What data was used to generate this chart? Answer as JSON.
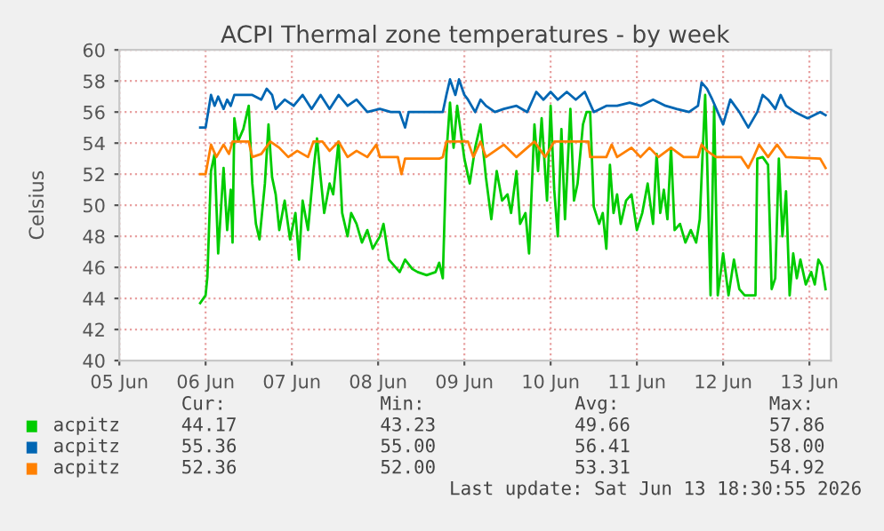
{
  "chart_data": {
    "type": "line",
    "title": "ACPI Thermal zone temperatures - by week",
    "ylabel": "Celsius",
    "xlim": [
      "2026-06-05T00:00",
      "2026-06-13T06:00"
    ],
    "xticks": [
      {
        "value": "2026-06-05",
        "label": "05 Jun"
      },
      {
        "value": "2026-06-06",
        "label": "06 Jun"
      },
      {
        "value": "2026-06-07",
        "label": "07 Jun"
      },
      {
        "value": "2026-06-08",
        "label": "08 Jun"
      },
      {
        "value": "2026-06-09",
        "label": "09 Jun"
      },
      {
        "value": "2026-06-10",
        "label": "10 Jun"
      },
      {
        "value": "2026-06-11",
        "label": "11 Jun"
      },
      {
        "value": "2026-06-12",
        "label": "12 Jun"
      },
      {
        "value": "2026-06-13",
        "label": "13 Jun"
      }
    ],
    "ylim": [
      40,
      60
    ],
    "yticks": [
      40,
      42,
      44,
      46,
      48,
      50,
      52,
      54,
      56,
      58,
      60
    ],
    "grid": true,
    "legend": "bottom",
    "marker": "none",
    "line_style": "solid",
    "series": [
      {
        "name": "acpitz",
        "color": "#00cc00",
        "x": [
          "2026-06-05T22:30",
          "2026-06-06T00:00",
          "2026-06-06T00:30",
          "2026-06-06T01:30",
          "2026-06-06T02:30",
          "2026-06-06T03:30",
          "2026-06-06T05:00",
          "2026-06-06T06:00",
          "2026-06-06T07:00",
          "2026-06-06T07:30",
          "2026-06-06T08:00",
          "2026-06-06T09:00",
          "2026-06-06T10:30",
          "2026-06-06T12:00",
          "2026-06-06T13:00",
          "2026-06-06T14:00",
          "2026-06-06T15:00",
          "2026-06-06T16:30",
          "2026-06-06T17:30",
          "2026-06-06T18:30",
          "2026-06-06T19:30",
          "2026-06-06T20:30",
          "2026-06-06T22:00",
          "2026-06-06T23:30",
          "2026-06-07T01:00",
          "2026-06-07T02:00",
          "2026-06-07T03:00",
          "2026-06-07T04:30",
          "2026-06-07T06:00",
          "2026-06-07T07:00",
          "2026-06-07T08:00",
          "2026-06-07T09:00",
          "2026-06-07T10:30",
          "2026-06-07T11:30",
          "2026-06-07T13:00",
          "2026-06-07T14:00",
          "2026-06-07T15:30",
          "2026-06-07T16:30",
          "2026-06-07T18:00",
          "2026-06-07T19:30",
          "2026-06-07T21:00",
          "2026-06-07T22:30",
          "2026-06-08T00:30",
          "2026-06-08T01:30",
          "2026-06-08T03:00",
          "2026-06-08T04:30",
          "2026-06-08T06:00",
          "2026-06-08T07:30",
          "2026-06-08T09:30",
          "2026-06-08T11:00",
          "2026-06-08T13:30",
          "2026-06-08T16:00",
          "2026-06-08T17:00",
          "2026-06-08T18:00",
          "2026-06-08T19:00",
          "2026-06-08T20:00",
          "2026-06-08T21:00",
          "2026-06-08T22:00",
          "2026-06-09T00:00",
          "2026-06-09T01:30",
          "2026-06-09T03:00",
          "2026-06-09T04:30",
          "2026-06-09T06:00",
          "2026-06-09T07:30",
          "2026-06-09T09:00",
          "2026-06-09T10:30",
          "2026-06-09T12:00",
          "2026-06-09T13:00",
          "2026-06-09T14:30",
          "2026-06-09T15:30",
          "2026-06-09T17:00",
          "2026-06-09T18:00",
          "2026-06-09T19:30",
          "2026-06-09T20:30",
          "2026-06-09T21:30",
          "2026-06-09T23:00",
          "2026-06-10T00:00",
          "2026-06-10T01:00",
          "2026-06-10T02:00",
          "2026-06-10T03:00",
          "2026-06-10T04:00",
          "2026-06-10T05:30",
          "2026-06-10T06:30",
          "2026-06-10T07:30",
          "2026-06-10T09:00",
          "2026-06-10T10:00",
          "2026-06-10T11:00",
          "2026-06-10T12:00",
          "2026-06-10T13:30",
          "2026-06-10T14:30",
          "2026-06-10T15:30",
          "2026-06-10T16:30",
          "2026-06-10T17:30",
          "2026-06-10T18:30",
          "2026-06-10T19:30",
          "2026-06-10T21:00",
          "2026-06-10T22:30",
          "2026-06-11T00:00",
          "2026-06-11T01:30",
          "2026-06-11T03:00",
          "2026-06-11T04:30",
          "2026-06-11T05:30",
          "2026-06-11T06:30",
          "2026-06-11T07:30",
          "2026-06-11T08:30",
          "2026-06-11T09:30",
          "2026-06-11T10:30",
          "2026-06-11T12:00",
          "2026-06-11T13:30",
          "2026-06-11T15:00",
          "2026-06-11T16:30",
          "2026-06-11T17:30",
          "2026-06-11T19:00",
          "2026-06-11T19:30",
          "2026-06-11T20:30",
          "2026-06-11T21:30",
          "2026-06-11T22:30",
          "2026-06-12T00:00",
          "2026-06-12T01:30",
          "2026-06-12T03:00",
          "2026-06-12T04:30",
          "2026-06-12T06:00",
          "2026-06-12T09:00",
          "2026-06-12T09:30",
          "2026-06-12T11:00",
          "2026-06-12T12:30",
          "2026-06-12T13:30",
          "2026-06-12T14:30",
          "2026-06-12T15:30",
          "2026-06-12T16:30",
          "2026-06-12T17:30",
          "2026-06-12T18:30",
          "2026-06-12T19:30",
          "2026-06-12T20:30",
          "2026-06-12T21:30",
          "2026-06-12T23:00",
          "2026-06-13T00:30",
          "2026-06-13T01:30",
          "2026-06-13T02:30",
          "2026-06-13T03:30",
          "2026-06-13T04:30"
        ],
        "values": [
          43.7,
          44.2,
          45.4,
          52.2,
          53.3,
          46.9,
          52.4,
          48.4,
          51.0,
          47.6,
          55.6,
          54.1,
          54.9,
          56.4,
          51.4,
          48.8,
          47.8,
          51.4,
          55.2,
          51.8,
          50.7,
          48.4,
          50.3,
          47.8,
          49.5,
          46.5,
          50.3,
          48.4,
          52.2,
          54.3,
          51.8,
          49.5,
          51.4,
          50.7,
          54.1,
          49.5,
          48.0,
          49.5,
          48.8,
          47.6,
          48.4,
          47.2,
          48.0,
          48.8,
          46.5,
          46.1,
          45.7,
          46.5,
          45.9,
          45.7,
          45.5,
          45.7,
          46.3,
          45.3,
          53.3,
          56.6,
          53.7,
          56.4,
          53.0,
          51.4,
          53.7,
          55.2,
          51.8,
          49.1,
          52.2,
          50.3,
          50.7,
          49.5,
          52.2,
          48.8,
          49.5,
          46.9,
          55.2,
          52.2,
          55.6,
          50.3,
          56.4,
          51.0,
          48.0,
          54.9,
          49.1,
          56.2,
          50.3,
          51.4,
          55.2,
          56.0,
          56.0,
          49.9,
          48.8,
          49.5,
          47.2,
          52.6,
          49.5,
          50.7,
          48.8,
          50.3,
          50.7,
          48.4,
          49.5,
          51.4,
          48.8,
          53.3,
          49.5,
          51.0,
          49.1,
          53.7,
          48.4,
          48.8,
          47.6,
          48.4,
          47.6,
          49.1,
          57.1,
          53.3,
          44.2,
          56.4,
          44.2,
          46.9,
          44.2,
          46.5,
          44.6,
          44.2,
          44.2,
          53.0,
          53.1,
          52.6,
          44.6,
          45.3,
          53.0,
          48.0,
          50.9,
          44.2,
          46.9,
          45.3,
          46.5,
          44.9,
          45.7,
          44.9,
          46.5,
          46.1,
          44.6
        ]
      },
      {
        "name": "acpitz",
        "color": "#0066b3",
        "x": [
          "2026-06-05T22:30",
          "2026-06-06T00:00",
          "2026-06-06T01:30",
          "2026-06-06T02:30",
          "2026-06-06T03:30",
          "2026-06-06T05:00",
          "2026-06-06T06:00",
          "2026-06-06T07:00",
          "2026-06-06T08:00",
          "2026-06-06T10:30",
          "2026-06-06T13:00",
          "2026-06-06T15:30",
          "2026-06-06T17:00",
          "2026-06-06T18:30",
          "2026-06-06T19:30",
          "2026-06-06T22:00",
          "2026-06-07T00:30",
          "2026-06-07T03:00",
          "2026-06-07T05:30",
          "2026-06-07T08:00",
          "2026-06-07T10:30",
          "2026-06-07T13:00",
          "2026-06-07T15:30",
          "2026-06-07T18:00",
          "2026-06-07T21:00",
          "2026-06-08T00:30",
          "2026-06-08T03:30",
          "2026-06-08T06:00",
          "2026-06-08T07:30",
          "2026-06-08T08:30",
          "2026-06-08T17:00",
          "2026-06-08T18:00",
          "2026-06-08T19:00",
          "2026-06-08T20:00",
          "2026-06-08T21:30",
          "2026-06-08T22:30",
          "2026-06-09T00:00",
          "2026-06-09T01:00",
          "2026-06-09T03:00",
          "2026-06-09T04:30",
          "2026-06-09T06:00",
          "2026-06-09T08:30",
          "2026-06-09T11:00",
          "2026-06-09T14:30",
          "2026-06-09T17:30",
          "2026-06-09T20:00",
          "2026-06-09T22:00",
          "2026-06-10T00:00",
          "2026-06-10T02:00",
          "2026-06-10T04:30",
          "2026-06-10T07:00",
          "2026-06-10T09:30",
          "2026-06-10T12:00",
          "2026-06-10T15:30",
          "2026-06-10T18:30",
          "2026-06-10T22:00",
          "2026-06-11T01:00",
          "2026-06-11T04:30",
          "2026-06-11T08:00",
          "2026-06-11T11:00",
          "2026-06-11T14:30",
          "2026-06-11T17:00",
          "2026-06-11T18:00",
          "2026-06-11T19:30",
          "2026-06-11T21:00",
          "2026-06-12T00:00",
          "2026-06-12T02:00",
          "2026-06-12T04:30",
          "2026-06-12T07:00",
          "2026-06-12T09:30",
          "2026-06-12T11:00",
          "2026-06-12T12:30",
          "2026-06-12T14:30",
          "2026-06-12T16:00",
          "2026-06-12T17:30",
          "2026-06-12T20:00",
          "2026-06-12T23:30",
          "2026-06-13T03:00",
          "2026-06-13T04:30"
        ],
        "values": [
          55.0,
          55.0,
          57.1,
          56.4,
          57.0,
          56.2,
          56.8,
          56.4,
          57.1,
          57.1,
          57.1,
          56.8,
          57.5,
          57.1,
          56.2,
          56.8,
          56.4,
          57.1,
          56.2,
          57.1,
          56.2,
          57.1,
          56.4,
          56.8,
          56.0,
          56.2,
          56.0,
          56.0,
          55.0,
          56.0,
          56.0,
          56.0,
          57.1,
          58.1,
          57.1,
          58.1,
          57.1,
          56.8,
          56.0,
          56.8,
          56.4,
          56.0,
          56.2,
          56.4,
          56.0,
          57.3,
          56.8,
          57.3,
          56.8,
          57.3,
          56.8,
          57.3,
          56.0,
          56.4,
          56.4,
          56.6,
          56.4,
          56.8,
          56.4,
          56.2,
          56.0,
          56.4,
          57.9,
          57.5,
          56.8,
          55.2,
          56.8,
          56.0,
          55.0,
          56.0,
          57.1,
          56.8,
          56.2,
          57.1,
          56.4,
          56.0,
          55.6,
          56.0,
          55.8
        ]
      },
      {
        "name": "acpitz",
        "color": "#ff8000",
        "x": [
          "2026-06-05T22:30",
          "2026-06-06T00:00",
          "2026-06-06T01:30",
          "2026-06-06T03:00",
          "2026-06-06T05:00",
          "2026-06-06T06:30",
          "2026-06-06T07:30",
          "2026-06-06T12:00",
          "2026-06-06T13:00",
          "2026-06-06T15:30",
          "2026-06-06T18:00",
          "2026-06-06T20:30",
          "2026-06-06T23:00",
          "2026-06-07T01:30",
          "2026-06-07T04:30",
          "2026-06-07T06:00",
          "2026-06-07T08:30",
          "2026-06-07T10:30",
          "2026-06-07T13:00",
          "2026-06-07T15:30",
          "2026-06-07T18:00",
          "2026-06-07T21:00",
          "2026-06-07T23:30",
          "2026-06-08T00:30",
          "2026-06-08T05:30",
          "2026-06-08T06:30",
          "2026-06-08T07:30",
          "2026-06-08T17:00",
          "2026-06-08T18:00",
          "2026-06-08T19:00",
          "2026-06-09T01:00",
          "2026-06-09T02:30",
          "2026-06-09T04:30",
          "2026-06-09T06:00",
          "2026-06-09T11:00",
          "2026-06-09T14:30",
          "2026-06-09T19:30",
          "2026-06-09T22:30",
          "2026-06-10T01:00",
          "2026-06-10T05:30",
          "2026-06-10T10:30",
          "2026-06-10T11:00",
          "2026-06-10T15:30",
          "2026-06-10T17:00",
          "2026-06-10T18:30",
          "2026-06-10T22:30",
          "2026-06-11T01:00",
          "2026-06-11T03:30",
          "2026-06-11T06:00",
          "2026-06-11T09:30",
          "2026-06-11T13:00",
          "2026-06-11T17:00",
          "2026-06-11T18:00",
          "2026-06-11T19:30",
          "2026-06-11T22:00",
          "2026-06-12T05:00",
          "2026-06-12T07:00",
          "2026-06-12T08:30",
          "2026-06-12T10:00",
          "2026-06-12T12:30",
          "2026-06-12T15:00",
          "2026-06-12T17:30",
          "2026-06-13T03:00",
          "2026-06-13T04:30"
        ],
        "values": [
          52.0,
          52.0,
          53.9,
          53.1,
          53.9,
          53.3,
          54.1,
          54.1,
          53.1,
          53.3,
          54.1,
          53.7,
          53.1,
          53.5,
          53.1,
          54.1,
          54.1,
          53.5,
          54.1,
          53.1,
          53.5,
          53.1,
          53.9,
          53.1,
          53.1,
          52.0,
          53.0,
          53.0,
          53.1,
          54.1,
          54.1,
          53.1,
          54.1,
          53.1,
          53.9,
          53.1,
          54.1,
          53.1,
          54.1,
          54.1,
          54.1,
          53.1,
          53.1,
          53.9,
          53.1,
          53.7,
          53.1,
          53.7,
          53.1,
          53.7,
          53.1,
          53.1,
          53.9,
          53.5,
          53.1,
          53.1,
          52.4,
          53.1,
          53.9,
          53.1,
          53.9,
          53.1,
          53.0,
          52.4
        ]
      }
    ],
    "annotations": [
      "Cur:",
      "Min:",
      "Avg:",
      "Max:",
      "44.17",
      "43.23",
      "49.66",
      "57.86",
      "55.36",
      "55.00",
      "56.41",
      "58.00",
      "52.36",
      "52.00",
      "53.31",
      "54.92",
      "Last update: Sat Jun 13 18:30:55 2026"
    ]
  }
}
